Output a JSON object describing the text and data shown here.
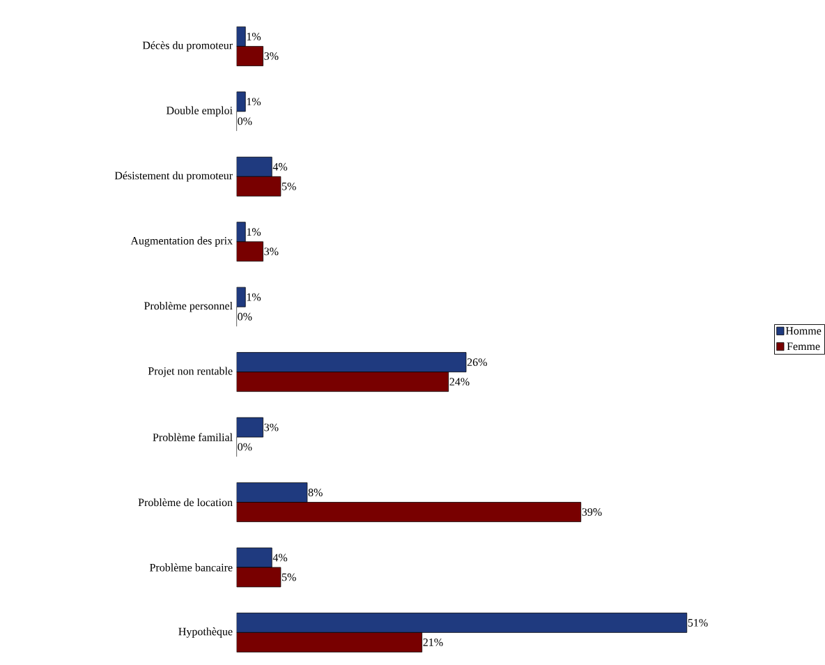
{
  "chart_data": {
    "type": "bar",
    "orientation": "horizontal",
    "categories": [
      "Décès du promoteur",
      "Double emploi",
      "Désistement du promoteur",
      "Augmentation des prix",
      "Problème personnel",
      "Projet non rentable",
      "Problème familial",
      "Problème de location",
      "Problème bancaire",
      "Hypothèque"
    ],
    "series": [
      {
        "name": "Homme",
        "color": "#1f3a7f",
        "values": [
          1,
          1,
          4,
          1,
          1,
          26,
          3,
          8,
          4,
          51
        ],
        "value_labels": [
          "1%",
          "1%",
          "4%",
          "1%",
          "1%",
          "26%",
          "3%",
          "8%",
          "4%",
          "51%"
        ]
      },
      {
        "name": "Femme",
        "color": "#780000",
        "values": [
          3,
          0,
          5,
          3,
          0,
          24,
          0,
          39,
          5,
          21
        ],
        "value_labels": [
          "3%",
          "0%",
          "5%",
          "3%",
          "0%",
          "24%",
          "0%",
          "39%",
          "5%",
          "21%"
        ]
      }
    ],
    "legend": "right"
  }
}
